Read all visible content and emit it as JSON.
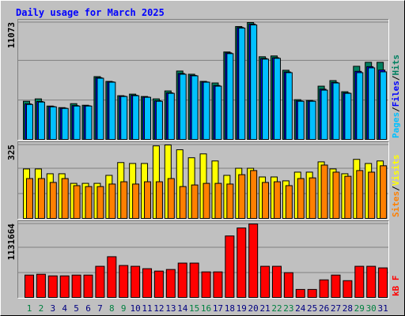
{
  "chart_data": [
    {
      "type": "bar",
      "title": "Daily usage for March 2025",
      "ylim": [
        0,
        11073
      ],
      "yticks": [
        11073
      ],
      "separator": "/",
      "series": [
        {
          "name": "Hits",
          "color": "#008060",
          "values": [
            3665,
            3890,
            3216,
            3067,
            3441,
            3291,
            5984,
            5535,
            4189,
            4338,
            4114,
            3890,
            4638,
            6508,
            6208,
            5535,
            5386,
            8303,
            10696,
            11073,
            7854,
            7929,
            6582,
            3815,
            3740,
            5086,
            5610,
            4563,
            6956,
            7330,
            7330
          ]
        },
        {
          "name": "Files",
          "color": "#0000ff",
          "values": [
            3420,
            3640,
            3170,
            3020,
            3260,
            3240,
            5880,
            5490,
            4140,
            4230,
            4060,
            3710,
            4460,
            6280,
            6100,
            5480,
            5150,
            8220,
            10600,
            10930,
            7690,
            7760,
            6420,
            3700,
            3690,
            4800,
            5440,
            4450,
            6480,
            6920,
            6600
          ]
        },
        {
          "name": "Pages",
          "color": "#00c0ff",
          "values": [
            3366,
            3590,
            3142,
            2992,
            3216,
            3216,
            5834,
            5460,
            4114,
            4189,
            4039,
            3665,
            4413,
            6208,
            6059,
            5460,
            5086,
            8150,
            10547,
            10846,
            7630,
            7704,
            6358,
            3665,
            3665,
            4712,
            5386,
            4413,
            6358,
            6807,
            6433
          ]
        }
      ]
    },
    {
      "type": "bar",
      "ylim": [
        0,
        325
      ],
      "yticks": [
        325
      ],
      "separator": "/",
      "series": [
        {
          "name": "Visits",
          "color": "#ffff00",
          "values": [
            220,
            220,
            199,
            199,
            157,
            157,
            157,
            192,
            248,
            244,
            244,
            321,
            325,
            304,
            269,
            286,
            255,
            192,
            223,
            223,
            185,
            185,
            168,
            206,
            206,
            251,
            220,
            199,
            262,
            244,
            255
          ]
        },
        {
          "name": "Sites",
          "color": "#ff8000",
          "values": [
            178,
            178,
            161,
            178,
            147,
            143,
            143,
            154,
            164,
            154,
            164,
            164,
            178,
            143,
            150,
            157,
            157,
            154,
            195,
            213,
            161,
            164,
            147,
            178,
            181,
            237,
            206,
            188,
            213,
            206,
            234
          ]
        }
      ]
    },
    {
      "type": "bar",
      "ylim": [
        0,
        1131664
      ],
      "yticks": [
        1131664
      ],
      "categories": [
        "1",
        "2",
        "3",
        "4",
        "5",
        "6",
        "7",
        "8",
        "9",
        "10",
        "11",
        "12",
        "13",
        "14",
        "15",
        "16",
        "17",
        "18",
        "19",
        "20",
        "21",
        "22",
        "23",
        "24",
        "25",
        "26",
        "27",
        "28",
        "29",
        "30",
        "31"
      ],
      "category_colors": [
        "#008040",
        "#008040",
        "#000080",
        "#000080",
        "#000080",
        "#000080",
        "#000080",
        "#008040",
        "#008040",
        "#000080",
        "#000080",
        "#000080",
        "#000080",
        "#000080",
        "#008040",
        "#008040",
        "#000080",
        "#000080",
        "#000080",
        "#000080",
        "#000080",
        "#008040",
        "#008040",
        "#000080",
        "#000080",
        "#000080",
        "#000080",
        "#000080",
        "#008040",
        "#008040",
        "#000080"
      ],
      "series": [
        {
          "name": "kB F",
          "color": "#ff0000",
          "values": [
            352874,
            365050,
            340710,
            340710,
            352874,
            352874,
            486720,
            632736,
            498888,
            486720,
            450216,
            413712,
            438048,
            535392,
            535392,
            401544,
            401544,
            949104,
            1070784,
            1131664,
            486720,
            486720,
            389376,
            133848,
            133848,
            279864,
            352874,
            267696,
            486720,
            486720,
            462384
          ]
        }
      ]
    }
  ]
}
